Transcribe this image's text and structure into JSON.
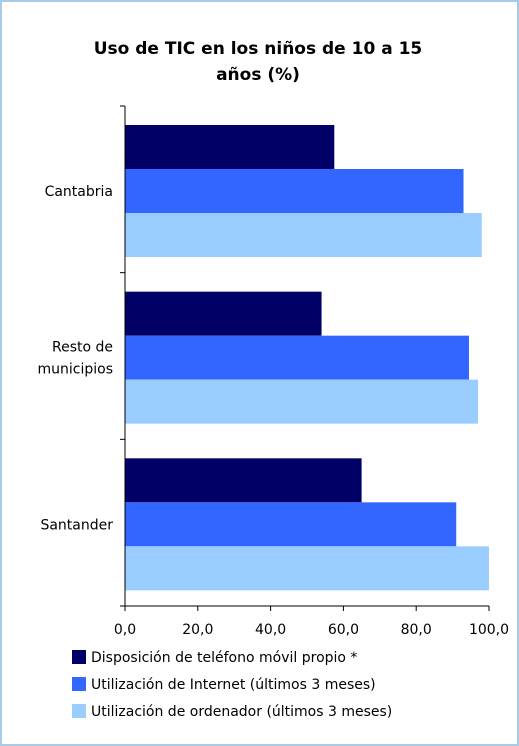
{
  "chart_data": {
    "type": "bar",
    "orientation": "horizontal",
    "title_lines": [
      "Uso de TIC en los niños de 10 a 15",
      "años (%)"
    ],
    "categories": [
      {
        "lines": [
          "Cantabria"
        ]
      },
      {
        "lines": [
          "Resto de",
          "municipios"
        ]
      },
      {
        "lines": [
          "Santander"
        ]
      }
    ],
    "series": [
      {
        "name": "Disposición de teléfono móvil propio *",
        "color": "#000066",
        "values": [
          57.5,
          54.0,
          65.0
        ]
      },
      {
        "name": "Utilización de Internet (últimos 3 meses)",
        "color": "#3366ff",
        "values": [
          93.0,
          94.5,
          91.0
        ]
      },
      {
        "name": "Utilización de ordenador (últimos 3 meses)",
        "color": "#99ccff",
        "values": [
          98.0,
          97.0,
          100.0
        ]
      }
    ],
    "xlim": [
      0,
      100
    ],
    "xticks": [
      "0,0",
      "20,0",
      "40,0",
      "60,0",
      "80,0",
      "100,0"
    ],
    "grid": false,
    "legend": "bottom"
  }
}
